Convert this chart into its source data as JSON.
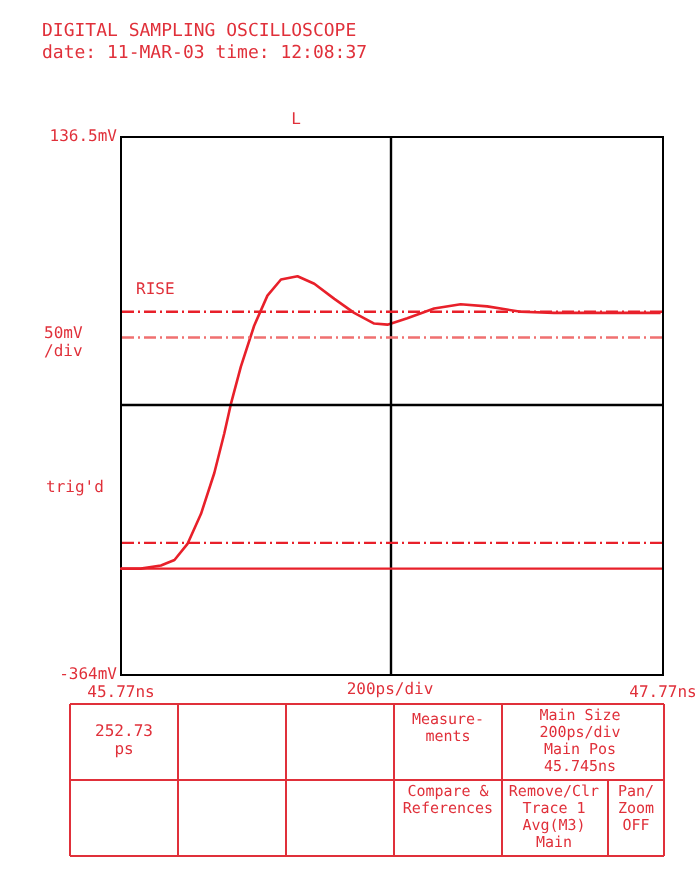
{
  "chart_data": {
    "type": "line",
    "title": "DIGITAL SAMPLING OSCILLOSCOPE",
    "subtitle": "date: 11-MAR-03 time: 12:08:37",
    "xlabel": "200ps/div",
    "ylabel": "50mV\n/div",
    "x": [
      45.774,
      45.847,
      45.921,
      45.971,
      46.019,
      46.069,
      46.118,
      46.155,
      46.179,
      46.216,
      46.265,
      46.314,
      46.364,
      46.425,
      46.487,
      46.561,
      46.634,
      46.708,
      46.757,
      46.83,
      46.929,
      47.027,
      47.125,
      47.249,
      47.372,
      47.765
    ],
    "series": [
      {
        "color": "#e8202a",
        "values": [
          -266,
          -266,
          -263,
          -258,
          -243,
          -215,
          -177,
          -140,
          -113,
          -78,
          -40,
          -12,
          3,
          6,
          -1,
          -15,
          -28,
          -38,
          -39,
          -33,
          -24,
          -20,
          -22,
          -27,
          -28,
          -28
        ]
      }
    ],
    "xlim": [
      45.77,
      47.77
    ],
    "xticks": [
      {
        "value": 45.77,
        "label": "45.77ns"
      },
      {
        "value": 47.77,
        "label": "47.77ns"
      }
    ],
    "ylim": [
      -364,
      136.5
    ],
    "yticks": [
      {
        "value": -364,
        "label": "-364mV"
      },
      {
        "value": 136.5,
        "label": "136.5mV"
      }
    ],
    "marker": "none",
    "line_style": "solid",
    "ref_lines": [
      {
        "axis": "x",
        "value": 46.77,
        "color": "#000000",
        "line_style": "solid"
      },
      {
        "axis": "y",
        "value": -113.75,
        "color": "#000000",
        "line_style": "solid"
      },
      {
        "axis": "y",
        "value": -27,
        "color": "#e8202a",
        "line_style": "dashed"
      },
      {
        "axis": "y",
        "value": -51,
        "color": "#f07070",
        "line_style": "dashed"
      },
      {
        "axis": "y",
        "value": -242,
        "color": "#e8202a",
        "line_style": "dashed"
      },
      {
        "axis": "y",
        "value": -266,
        "color": "#e8202a",
        "line_style": "solid"
      }
    ],
    "annotations": [
      "L",
      "RISE",
      "trig'd",
      "252.73\nps",
      "Measure-\nments",
      "Main Size\n200ps/div\nMain Pos\n45.745ns",
      "Compare &\nReferences",
      "Remove/Clr\nTrace 1\nAvg(M3)\nMain",
      "Pan/\nZoom\nOFF"
    ]
  }
}
